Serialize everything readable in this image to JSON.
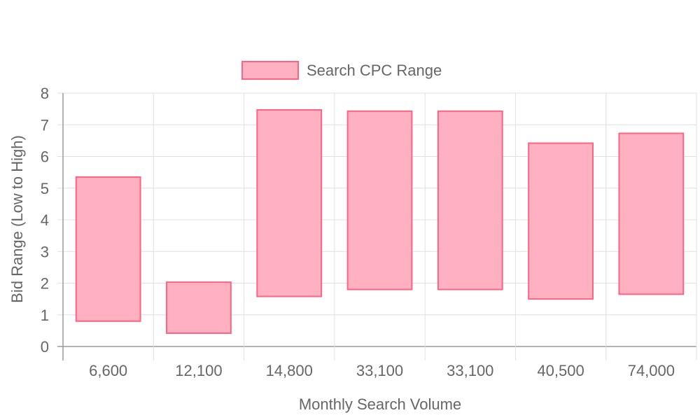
{
  "chart_data": {
    "type": "bar",
    "subtype": "floating-range",
    "title": "",
    "xlabel": "Monthly Search Volume",
    "ylabel": "Bid Range (Low to High)",
    "ylim": [
      0,
      8
    ],
    "yticks": [
      "0",
      "1",
      "2",
      "3",
      "4",
      "5",
      "6",
      "7",
      "8"
    ],
    "grid": true,
    "legend_position": "top",
    "categories": [
      "6,600",
      "12,100",
      "14,800",
      "33,100",
      "33,100",
      "40,500",
      "74,000"
    ],
    "series": [
      {
        "name": "Search CPC Range",
        "color_fill": "#ffb1c1",
        "color_border": "#ff6384",
        "ranges": [
          [
            0.8,
            5.35
          ],
          [
            0.42,
            2.03
          ],
          [
            1.58,
            7.47
          ],
          [
            1.8,
            7.43
          ],
          [
            1.8,
            7.43
          ],
          [
            1.5,
            6.42
          ],
          [
            1.65,
            6.73
          ]
        ]
      }
    ]
  }
}
